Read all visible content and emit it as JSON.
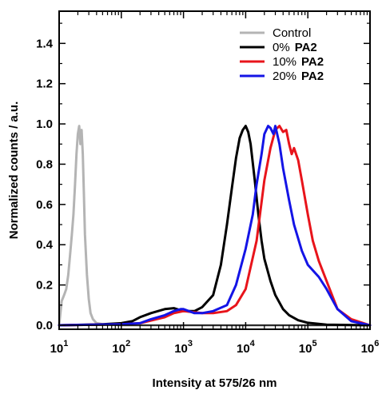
{
  "chart_data": {
    "type": "line",
    "xlabel": "Intensity at 575/26 nm",
    "ylabel": "Normalized counts / a.u.",
    "x_scale": "log",
    "xlim": [
      10,
      1000000
    ],
    "ylim": [
      -0.02,
      1.56
    ],
    "x_ticks": [
      {
        "value": 10,
        "base": "10",
        "exp": "1"
      },
      {
        "value": 100,
        "base": "10",
        "exp": "2"
      },
      {
        "value": 1000,
        "base": "10",
        "exp": "3"
      },
      {
        "value": 10000,
        "base": "10",
        "exp": "4"
      },
      {
        "value": 100000,
        "base": "10",
        "exp": "5"
      },
      {
        "value": 1000000,
        "base": "10",
        "exp": "6"
      }
    ],
    "y_ticks": [
      {
        "value": 0.0,
        "label": "0.0"
      },
      {
        "value": 0.2,
        "label": "0.2"
      },
      {
        "value": 0.4,
        "label": "0.4"
      },
      {
        "value": 0.6,
        "label": "0.6"
      },
      {
        "value": 0.8,
        "label": "0.8"
      },
      {
        "value": 1.0,
        "label": "1.0"
      },
      {
        "value": 1.2,
        "label": "1.2"
      },
      {
        "value": 1.4,
        "label": "1.4"
      }
    ],
    "grid": false,
    "legend_position": "top-right",
    "series": [
      {
        "name": "Control",
        "name_suffix": "",
        "color": "#b4b4b4",
        "x": [
          10,
          11,
          12,
          13,
          14,
          15,
          16,
          17,
          18,
          19,
          20,
          21,
          22,
          23,
          24,
          25,
          26,
          28,
          30,
          32,
          35,
          40,
          50,
          70,
          100,
          1000000
        ],
        "y": [
          0.0,
          0.12,
          0.15,
          0.18,
          0.25,
          0.35,
          0.45,
          0.55,
          0.7,
          0.85,
          0.95,
          0.99,
          0.9,
          0.97,
          0.85,
          0.65,
          0.45,
          0.25,
          0.13,
          0.06,
          0.03,
          0.01,
          0.005,
          0.003,
          0.0,
          0.0
        ]
      },
      {
        "name": "0%",
        "name_suffix": "PA2",
        "color": "#000000",
        "x": [
          10,
          50,
          100,
          150,
          200,
          300,
          500,
          700,
          1000,
          1500,
          2000,
          3000,
          4000,
          5000,
          6000,
          7000,
          8000,
          9000,
          10000,
          11000,
          12000,
          14000,
          16000,
          18000,
          20000,
          25000,
          30000,
          40000,
          50000,
          70000,
          100000,
          200000,
          1000000
        ],
        "y": [
          0.0,
          0.005,
          0.01,
          0.02,
          0.04,
          0.06,
          0.08,
          0.085,
          0.07,
          0.07,
          0.09,
          0.15,
          0.3,
          0.5,
          0.68,
          0.83,
          0.93,
          0.97,
          0.99,
          0.96,
          0.9,
          0.72,
          0.55,
          0.42,
          0.33,
          0.22,
          0.15,
          0.08,
          0.05,
          0.025,
          0.012,
          0.003,
          0.0
        ]
      },
      {
        "name": "10%",
        "name_suffix": "PA2",
        "color": "#e8141b",
        "x": [
          10,
          100,
          200,
          500,
          700,
          1000,
          2000,
          3000,
          5000,
          7000,
          10000,
          15000,
          20000,
          25000,
          30000,
          35000,
          40000,
          45000,
          50000,
          55000,
          60000,
          70000,
          80000,
          100000,
          120000,
          150000,
          200000,
          300000,
          500000,
          1000000
        ],
        "y": [
          0.0,
          0.005,
          0.01,
          0.04,
          0.06,
          0.07,
          0.06,
          0.06,
          0.07,
          0.1,
          0.18,
          0.42,
          0.72,
          0.88,
          0.97,
          0.99,
          0.96,
          0.97,
          0.9,
          0.85,
          0.88,
          0.82,
          0.72,
          0.55,
          0.42,
          0.32,
          0.22,
          0.08,
          0.03,
          0.0
        ]
      },
      {
        "name": "20%",
        "name_suffix": "PA2",
        "color": "#1414e6",
        "x": [
          10,
          100,
          200,
          300,
          500,
          700,
          900,
          1000,
          1500,
          2000,
          3000,
          5000,
          7000,
          10000,
          13000,
          15000,
          18000,
          20000,
          23000,
          25000,
          28000,
          30000,
          35000,
          40000,
          50000,
          60000,
          80000,
          100000,
          150000,
          200000,
          300000,
          500000,
          1000000
        ],
        "y": [
          0.0,
          0.005,
          0.01,
          0.03,
          0.05,
          0.07,
          0.08,
          0.08,
          0.06,
          0.06,
          0.07,
          0.1,
          0.2,
          0.38,
          0.55,
          0.7,
          0.85,
          0.95,
          0.99,
          0.98,
          0.95,
          0.99,
          0.9,
          0.78,
          0.62,
          0.5,
          0.37,
          0.3,
          0.24,
          0.18,
          0.08,
          0.02,
          0.0
        ]
      }
    ]
  }
}
